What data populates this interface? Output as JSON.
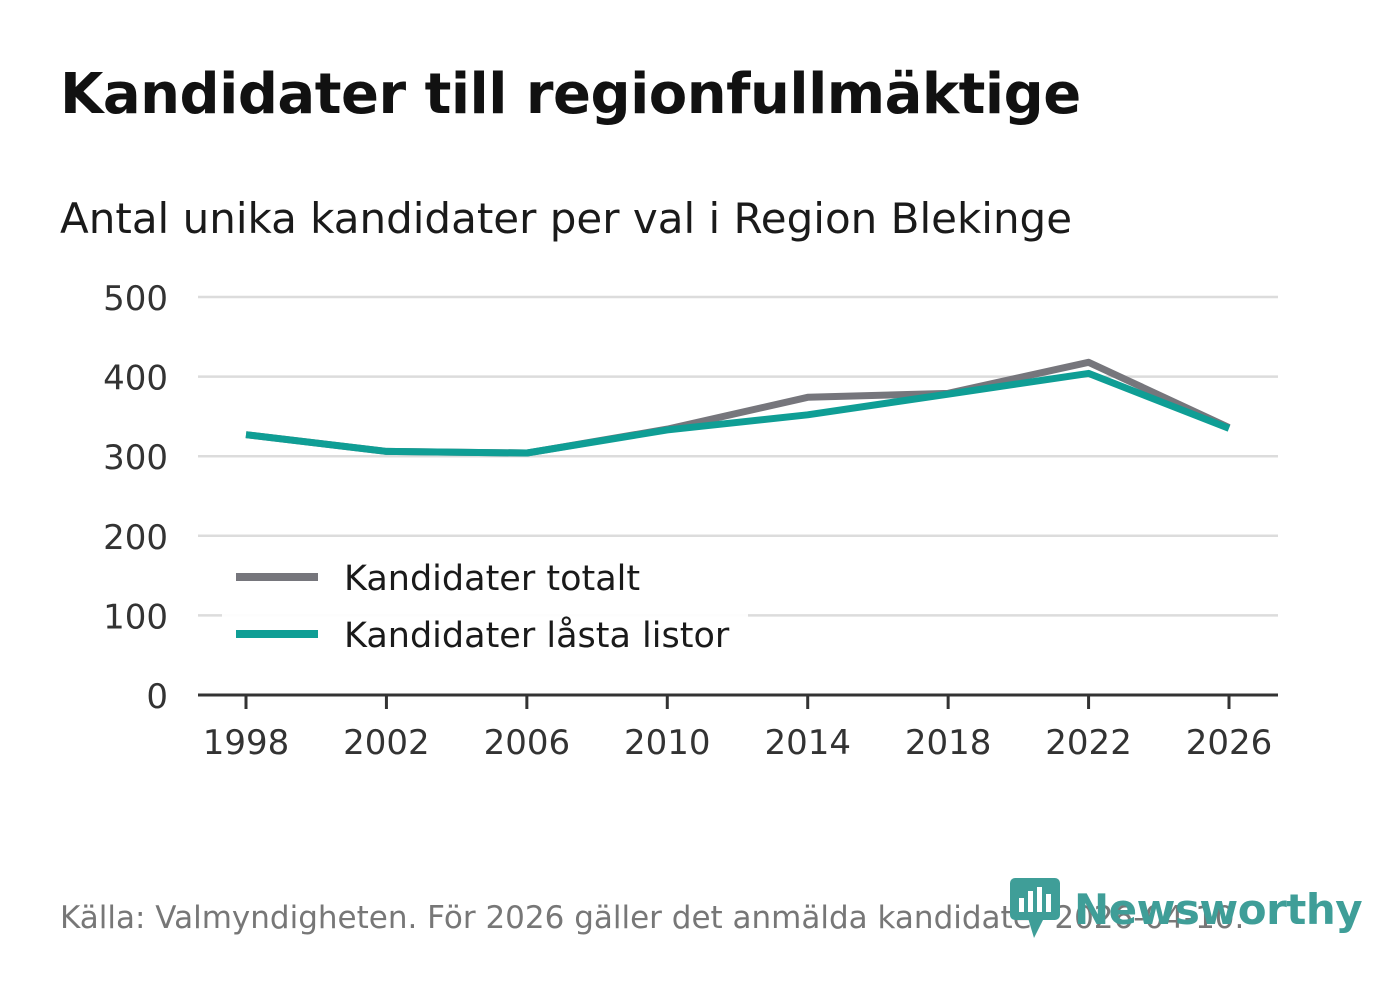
{
  "title": "Kandidater till regionfullmäktige",
  "subtitle": "Antal unika kandidater per val i Region Blekinge",
  "source": "Källa: Valmyndigheten. För 2026 gäller det anmälda kandidater 2026-04-10.",
  "brand": {
    "name": "Newsworthy",
    "icon": "newsworthy-logo-icon",
    "color": "#3f9e98"
  },
  "chart_data": {
    "type": "line",
    "title": "Kandidater till regionfullmäktige",
    "subtitle": "Antal unika kandidater per val i Region Blekinge",
    "xlabel": "",
    "ylabel": "",
    "x": [
      1998,
      2002,
      2006,
      2010,
      2014,
      2018,
      2022,
      2026
    ],
    "x_tick_labels": [
      "1998",
      "2002",
      "2006",
      "2010",
      "2014",
      "2018",
      "2022",
      "2026"
    ],
    "ylim": [
      0,
      500
    ],
    "y_ticks": [
      0,
      100,
      200,
      300,
      400,
      500
    ],
    "grid": true,
    "legend_position": "bottom-left",
    "series": [
      {
        "name": "Kandidater totalt",
        "color": "#76767c",
        "values": [
          327,
          306,
          304,
          334,
          374,
          379,
          418,
          336
        ]
      },
      {
        "name": "Kandidater låsta listor",
        "color": "#0f9e95",
        "values": [
          327,
          306,
          304,
          333,
          352,
          378,
          404,
          335
        ]
      }
    ]
  }
}
